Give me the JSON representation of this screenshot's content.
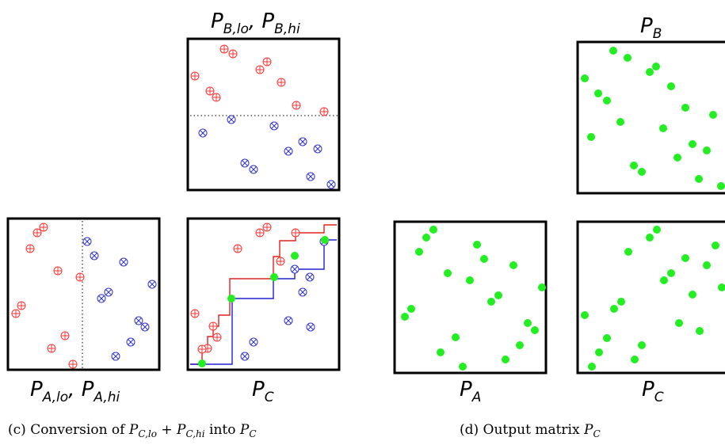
{
  "labels": {
    "pb_split": {
      "main1": "P",
      "sub1": "B,lo",
      "sep": ", ",
      "main2": "P",
      "sub2": "B,hi"
    },
    "pa_split": {
      "main1": "P",
      "sub1": "A,lo",
      "sep": ", ",
      "main2": "P",
      "sub2": "A,hi"
    },
    "pc_c": {
      "main": "P",
      "sub": "C"
    },
    "pb_d": {
      "main": "P",
      "sub": "B"
    },
    "pa_d": {
      "main": "P",
      "sub": "A"
    },
    "pc_d": {
      "main": "P",
      "sub": "C"
    }
  },
  "captions": {
    "c": {
      "prefix": "(c) Conversion of ",
      "t1": "P",
      "s1": "C,lo",
      "plus": " + ",
      "t2": "P",
      "s2": "C,hi",
      "into": " into ",
      "t3": "P",
      "s3": "C"
    },
    "d": {
      "prefix": "(d) Output matrix ",
      "t1": "P",
      "s1": "C"
    }
  },
  "colors": {
    "hi_marker": "#ff3333",
    "lo_marker": "#3333cc",
    "output_point": "#22ee22",
    "border": "#000000"
  },
  "legend_symbols": {
    "hi": "circle-plus",
    "lo": "circle-times",
    "output": "filled-dot"
  }
}
